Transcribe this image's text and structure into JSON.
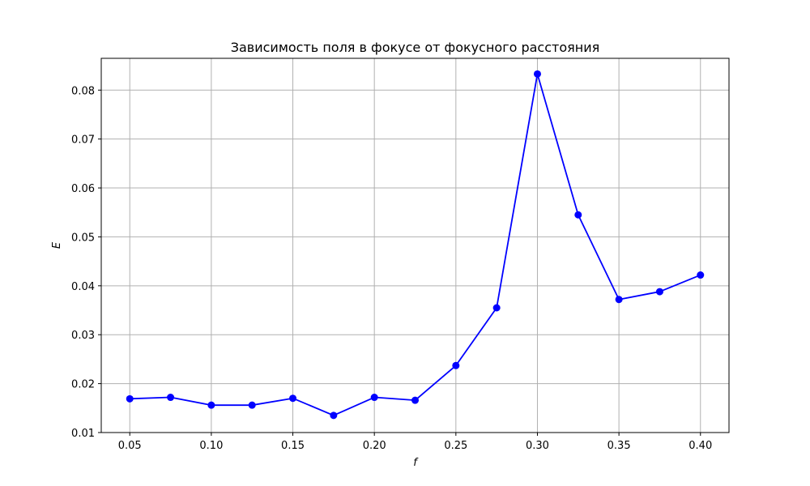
{
  "chart_data": {
    "type": "line",
    "title": "Зависимость поля в фокусе от фокусного расстояния",
    "xlabel": "f",
    "ylabel": "E",
    "xlim": [
      0.0325,
      0.4175
    ],
    "ylim": [
      0.01,
      0.0865
    ],
    "xticks": [
      0.05,
      0.1,
      0.15,
      0.2,
      0.25,
      0.3,
      0.35,
      0.4
    ],
    "xtick_labels": [
      "0.05",
      "0.10",
      "0.15",
      "0.20",
      "0.25",
      "0.30",
      "0.35",
      "0.40"
    ],
    "yticks": [
      0.01,
      0.02,
      0.03,
      0.04,
      0.05,
      0.06,
      0.07,
      0.08
    ],
    "ytick_labels": [
      "0.01",
      "0.02",
      "0.03",
      "0.04",
      "0.05",
      "0.06",
      "0.07",
      "0.08"
    ],
    "grid": true,
    "series": [
      {
        "color": "#0000ff",
        "marker": "circle",
        "x": [
          0.05,
          0.075,
          0.1,
          0.125,
          0.15,
          0.175,
          0.2,
          0.225,
          0.25,
          0.275,
          0.3,
          0.325,
          0.35,
          0.375,
          0.4
        ],
        "y": [
          0.0169,
          0.0172,
          0.0156,
          0.0156,
          0.017,
          0.0135,
          0.0172,
          0.0166,
          0.0237,
          0.0355,
          0.0833,
          0.0545,
          0.0372,
          0.0388,
          0.0422
        ]
      }
    ]
  }
}
